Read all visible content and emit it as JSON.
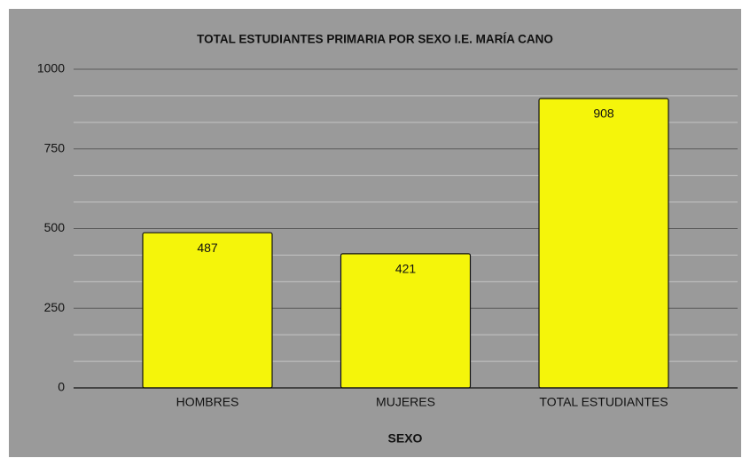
{
  "chart_data": {
    "type": "bar",
    "title": "TOTAL ESTUDIANTES PRIMARIA POR SEXO I.E. MARÍA CANO",
    "x_label": "SEXO",
    "categories": [
      "HOMBRES",
      "MUJERES",
      "TOTAL ESTUDIANTES"
    ],
    "values": [
      487,
      421,
      908
    ],
    "color": "#f5f50a",
    "ylim": [
      0,
      1000
    ],
    "yticks": [
      0,
      250,
      500,
      750,
      1000
    ],
    "grid": true
  }
}
